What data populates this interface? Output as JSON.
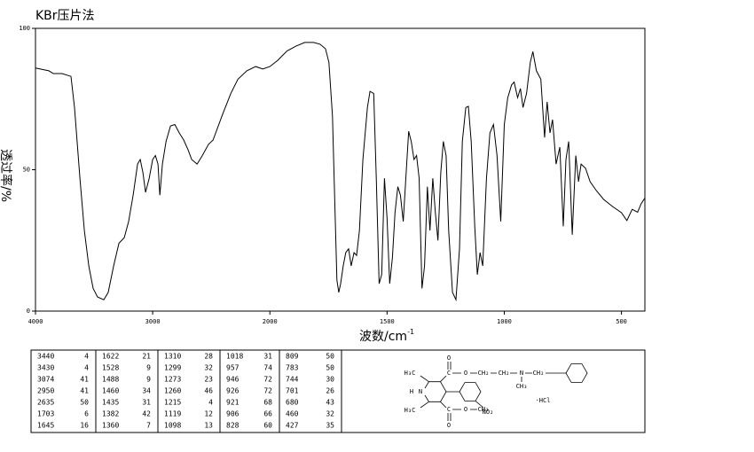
{
  "chart_data": {
    "type": "line",
    "title": "KBr压片法",
    "x_label": "波数/cm",
    "x_label_sup": "-1",
    "y_label": "透过率/%",
    "x": [
      4000,
      3886,
      3848,
      3773,
      3697,
      3667,
      3621,
      3583,
      3545,
      3508,
      3470,
      3417,
      3379,
      3333,
      3288,
      3242,
      3205,
      3167,
      3129,
      3106,
      3083,
      3061,
      3030,
      3000,
      2977,
      2955,
      2939,
      2917,
      2886,
      2848,
      2811,
      2773,
      2735,
      2697,
      2667,
      2621,
      2576,
      2523,
      2485,
      2409,
      2333,
      2273,
      2197,
      2121,
      2061,
      2000,
      1966,
      1927,
      1889,
      1851,
      1813,
      1786,
      1763,
      1748,
      1733,
      1721,
      1714,
      1706,
      1698,
      1687,
      1676,
      1664,
      1653,
      1641,
      1630,
      1618,
      1603,
      1584,
      1573,
      1557,
      1546,
      1534,
      1523,
      1511,
      1500,
      1489,
      1477,
      1466,
      1454,
      1443,
      1431,
      1420,
      1408,
      1397,
      1385,
      1374,
      1363,
      1351,
      1340,
      1328,
      1317,
      1305,
      1294,
      1283,
      1271,
      1260,
      1248,
      1237,
      1221,
      1206,
      1191,
      1179,
      1164,
      1153,
      1141,
      1126,
      1115,
      1103,
      1092,
      1076,
      1061,
      1046,
      1031,
      1015,
      1000,
      985,
      969,
      958,
      943,
      931,
      920,
      905,
      889,
      878,
      863,
      844,
      828,
      817,
      805,
      794,
      779,
      763,
      748,
      737,
      725,
      710,
      695,
      683,
      672,
      653,
      634,
      607,
      576,
      538,
      500,
      477,
      454,
      431,
      416,
      400
    ],
    "values": [
      86,
      85,
      84,
      84,
      83,
      72,
      47,
      28.5,
      16,
      8,
      5,
      4,
      6.6,
      16,
      24,
      26,
      31.7,
      41,
      52,
      53.6,
      49,
      42,
      47,
      53.6,
      55,
      52,
      41,
      52,
      60,
      65.5,
      66,
      63,
      60.5,
      57,
      53.6,
      52,
      55,
      59,
      60.5,
      69,
      77,
      82,
      85,
      86.5,
      85.6,
      86.5,
      88.7,
      92,
      93.7,
      95,
      95,
      94.4,
      92.8,
      88,
      69,
      31.7,
      11,
      6.6,
      9.7,
      16,
      20.7,
      22,
      16,
      20.7,
      19.7,
      28.5,
      53.6,
      72,
      77.7,
      77,
      47,
      9.7,
      12.9,
      47,
      33,
      9.7,
      19,
      34.8,
      44,
      41,
      31.7,
      47,
      63.6,
      60,
      53.6,
      55,
      47,
      8,
      16,
      44,
      28.5,
      47,
      34.8,
      25,
      49,
      60,
      55,
      28.5,
      6.6,
      4,
      22,
      60,
      72,
      72.4,
      60,
      30,
      12.9,
      20.7,
      16,
      47,
      63,
      66,
      55,
      31.7,
      66,
      75.5,
      80,
      81,
      75.5,
      78.7,
      72,
      77,
      88,
      91.8,
      85,
      82,
      61.4,
      74,
      63,
      67.7,
      52,
      58,
      30,
      53.6,
      60,
      27,
      55,
      45.8,
      52,
      50.5,
      45.8,
      42.6,
      39.5,
      37,
      34.8,
      32,
      36,
      35,
      38,
      40
    ],
    "color": "#000000",
    "xlim": [
      4000,
      400
    ],
    "xticks": [
      4000,
      3000,
      2000,
      1500,
      1000,
      500
    ],
    "x_scale_change": 2000,
    "ylim": [
      0,
      100
    ],
    "yticks": [
      0,
      50,
      100
    ]
  },
  "peak_table": [
    [
      [
        3440,
        4
      ],
      [
        3430,
        4
      ],
      [
        3074,
        41
      ],
      [
        2950,
        41
      ],
      [
        2635,
        50
      ],
      [
        1703,
        6
      ],
      [
        1645,
        16
      ]
    ],
    [
      [
        1622,
        21
      ],
      [
        1528,
        9
      ],
      [
        1488,
        9
      ],
      [
        1460,
        34
      ],
      [
        1435,
        31
      ],
      [
        1382,
        42
      ],
      [
        1360,
        7
      ]
    ],
    [
      [
        1310,
        28
      ],
      [
        1299,
        32
      ],
      [
        1273,
        23
      ],
      [
        1260,
        46
      ],
      [
        1215,
        4
      ],
      [
        1119,
        12
      ],
      [
        1098,
        13
      ]
    ],
    [
      [
        1018,
        31
      ],
      [
        957,
        74
      ],
      [
        946,
        72
      ],
      [
        926,
        72
      ],
      [
        921,
        68
      ],
      [
        906,
        66
      ],
      [
        828,
        60
      ]
    ],
    [
      [
        809,
        50
      ],
      [
        783,
        50
      ],
      [
        744,
        30
      ],
      [
        701,
        26
      ],
      [
        680,
        43
      ],
      [
        460,
        32
      ],
      [
        427,
        35
      ]
    ]
  ],
  "structure": {
    "labels": [
      "H₃C",
      "C",
      "O",
      "O",
      "CH₂",
      "CH₂",
      "N",
      "CH₃",
      "CH₂",
      "H",
      "N",
      "H₃C",
      "C",
      "O",
      "O",
      "CH₃",
      "NO₂",
      "·HCl"
    ]
  }
}
